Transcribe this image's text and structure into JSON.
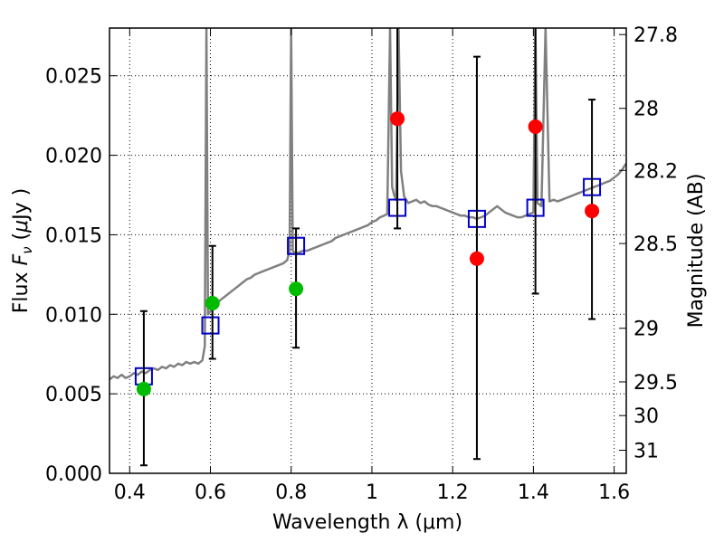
{
  "chart_data": {
    "type": "scatter",
    "xlabel": "Wavelength  λ (μm)",
    "ylabel": "Flux  F_ν  ( μJy )",
    "ylabel_right": "Magnitude (AB)",
    "xlim": [
      0.35,
      1.63
    ],
    "ylim": [
      0.0,
      0.028
    ],
    "grid": true,
    "x_ticks": [
      {
        "value": 0.4,
        "label": "0.4"
      },
      {
        "value": 0.6,
        "label": "0.6"
      },
      {
        "value": 0.8,
        "label": "0.8"
      },
      {
        "value": 1.0,
        "label": "1"
      },
      {
        "value": 1.2,
        "label": "1.2"
      },
      {
        "value": 1.4,
        "label": "1.4"
      },
      {
        "value": 1.6,
        "label": "1.6"
      }
    ],
    "y_ticks": [
      {
        "value": 0.0,
        "label": "0.000"
      },
      {
        "value": 0.005,
        "label": "0.005"
      },
      {
        "value": 0.01,
        "label": "0.010"
      },
      {
        "value": 0.015,
        "label": "0.015"
      },
      {
        "value": 0.02,
        "label": "0.020"
      },
      {
        "value": 0.025,
        "label": "0.025"
      }
    ],
    "right_ticks": [
      {
        "flux": 0.02759,
        "label": "27.8"
      },
      {
        "flux": 0.02295,
        "label": "28"
      },
      {
        "flux": 0.01905,
        "label": "28.2"
      },
      {
        "flux": 0.01445,
        "label": "28.5"
      },
      {
        "flux": 0.00912,
        "label": "29"
      },
      {
        "flux": 0.00575,
        "label": "29.5"
      },
      {
        "flux": 0.00363,
        "label": "30"
      },
      {
        "flux": 0.00145,
        "label": "31"
      }
    ],
    "series": [
      {
        "kind": "line",
        "color": "#808080",
        "points": [
          [
            0.35,
            0.0059
          ],
          [
            0.36,
            0.0061
          ],
          [
            0.37,
            0.006
          ],
          [
            0.38,
            0.0062
          ],
          [
            0.39,
            0.006
          ],
          [
            0.4,
            0.0061
          ],
          [
            0.41,
            0.0063
          ],
          [
            0.42,
            0.0062
          ],
          [
            0.43,
            0.0064
          ],
          [
            0.44,
            0.0063
          ],
          [
            0.45,
            0.0065
          ],
          [
            0.46,
            0.0066
          ],
          [
            0.47,
            0.0065
          ],
          [
            0.48,
            0.0067
          ],
          [
            0.49,
            0.0066
          ],
          [
            0.5,
            0.0068
          ],
          [
            0.51,
            0.0067
          ],
          [
            0.52,
            0.0069
          ],
          [
            0.53,
            0.0068
          ],
          [
            0.54,
            0.007
          ],
          [
            0.55,
            0.0069
          ],
          [
            0.56,
            0.007
          ],
          [
            0.57,
            0.0069
          ],
          [
            0.58,
            0.0071
          ],
          [
            0.586,
            0.008
          ],
          [
            0.59,
            0.028
          ],
          [
            0.594,
            0.01
          ],
          [
            0.6,
            0.0102
          ],
          [
            0.61,
            0.0105
          ],
          [
            0.62,
            0.0108
          ],
          [
            0.63,
            0.011
          ],
          [
            0.64,
            0.0112
          ],
          [
            0.65,
            0.0114
          ],
          [
            0.66,
            0.0116
          ],
          [
            0.67,
            0.0118
          ],
          [
            0.68,
            0.012
          ],
          [
            0.69,
            0.0122
          ],
          [
            0.7,
            0.0123
          ],
          [
            0.71,
            0.0125
          ],
          [
            0.72,
            0.0126
          ],
          [
            0.73,
            0.0127
          ],
          [
            0.74,
            0.0128
          ],
          [
            0.75,
            0.0129
          ],
          [
            0.76,
            0.013
          ],
          [
            0.77,
            0.0131
          ],
          [
            0.78,
            0.0132
          ],
          [
            0.79,
            0.0134
          ],
          [
            0.796,
            0.014
          ],
          [
            0.8,
            0.028
          ],
          [
            0.804,
            0.014
          ],
          [
            0.81,
            0.0138
          ],
          [
            0.82,
            0.0139
          ],
          [
            0.83,
            0.014
          ],
          [
            0.84,
            0.014
          ],
          [
            0.85,
            0.0141
          ],
          [
            0.86,
            0.0142
          ],
          [
            0.87,
            0.0143
          ],
          [
            0.88,
            0.0144
          ],
          [
            0.89,
            0.0145
          ],
          [
            0.9,
            0.0146
          ],
          [
            0.91,
            0.0148
          ],
          [
            0.92,
            0.0149
          ],
          [
            0.93,
            0.015
          ],
          [
            0.94,
            0.0151
          ],
          [
            0.95,
            0.0152
          ],
          [
            0.96,
            0.0153
          ],
          [
            0.97,
            0.0154
          ],
          [
            0.98,
            0.0155
          ],
          [
            0.99,
            0.0156
          ],
          [
            1.0,
            0.0158
          ],
          [
            1.01,
            0.0159
          ],
          [
            1.02,
            0.0161
          ],
          [
            1.03,
            0.0162
          ],
          [
            1.038,
            0.0163
          ],
          [
            1.045,
            0.028
          ],
          [
            1.05,
            0.018
          ],
          [
            1.055,
            0.0175
          ],
          [
            1.06,
            0.0172
          ],
          [
            1.066,
            0.028
          ],
          [
            1.072,
            0.019
          ],
          [
            1.08,
            0.0174
          ],
          [
            1.09,
            0.017
          ],
          [
            1.1,
            0.0171
          ],
          [
            1.11,
            0.0172
          ],
          [
            1.12,
            0.017
          ],
          [
            1.13,
            0.0171
          ],
          [
            1.14,
            0.0169
          ],
          [
            1.15,
            0.0168
          ],
          [
            1.16,
            0.0168
          ],
          [
            1.17,
            0.0167
          ],
          [
            1.18,
            0.0166
          ],
          [
            1.19,
            0.0165
          ],
          [
            1.2,
            0.0164
          ],
          [
            1.21,
            0.0163
          ],
          [
            1.22,
            0.0162
          ],
          [
            1.23,
            0.0162
          ],
          [
            1.24,
            0.0161
          ],
          [
            1.25,
            0.0161
          ],
          [
            1.26,
            0.016
          ],
          [
            1.27,
            0.0161
          ],
          [
            1.28,
            0.0162
          ],
          [
            1.29,
            0.0164
          ],
          [
            1.3,
            0.0166
          ],
          [
            1.31,
            0.0168
          ],
          [
            1.32,
            0.0166
          ],
          [
            1.33,
            0.0164
          ],
          [
            1.34,
            0.0163
          ],
          [
            1.35,
            0.0162
          ],
          [
            1.36,
            0.0161
          ],
          [
            1.37,
            0.0161
          ],
          [
            1.38,
            0.0162
          ],
          [
            1.39,
            0.0163
          ],
          [
            1.4,
            0.0164
          ],
          [
            1.405,
            0.028
          ],
          [
            1.41,
            0.017
          ],
          [
            1.42,
            0.0168
          ],
          [
            1.43,
            0.028
          ],
          [
            1.44,
            0.0171
          ],
          [
            1.45,
            0.0172
          ],
          [
            1.46,
            0.0171
          ],
          [
            1.47,
            0.0172
          ],
          [
            1.48,
            0.0173
          ],
          [
            1.49,
            0.0174
          ],
          [
            1.5,
            0.0175
          ],
          [
            1.51,
            0.0176
          ],
          [
            1.52,
            0.0177
          ],
          [
            1.53,
            0.0178
          ],
          [
            1.54,
            0.0179
          ],
          [
            1.55,
            0.018
          ],
          [
            1.56,
            0.0181
          ],
          [
            1.57,
            0.0182
          ],
          [
            1.58,
            0.0183
          ],
          [
            1.59,
            0.0184
          ],
          [
            1.6,
            0.0186
          ],
          [
            1.61,
            0.0188
          ],
          [
            1.62,
            0.0191
          ],
          [
            1.63,
            0.0195
          ]
        ]
      },
      {
        "kind": "squares",
        "color": "#0000cc",
        "points": [
          [
            0.435,
            0.0061
          ],
          [
            0.6,
            0.0093
          ],
          [
            0.812,
            0.0143
          ],
          [
            1.063,
            0.0167
          ],
          [
            1.26,
            0.016
          ],
          [
            1.405,
            0.0167
          ],
          [
            1.545,
            0.018
          ]
        ]
      },
      {
        "kind": "errorbars",
        "color": "#000000",
        "points": [
          {
            "x": 0.435,
            "lo": 0.0005,
            "hi": 0.0102
          },
          {
            "x": 0.605,
            "lo": 0.0072,
            "hi": 0.0143
          },
          {
            "x": 0.812,
            "lo": 0.0079,
            "hi": 0.0154
          },
          {
            "x": 1.063,
            "lo": 0.0154,
            "hi": 0.028
          },
          {
            "x": 1.26,
            "lo": 0.0009,
            "hi": 0.0262
          },
          {
            "x": 1.405,
            "lo": 0.0113,
            "hi": 0.028
          },
          {
            "x": 1.545,
            "lo": 0.0097,
            "hi": 0.0235
          }
        ]
      },
      {
        "kind": "dots",
        "color": "#00bb00",
        "points": [
          [
            0.435,
            0.0053
          ],
          [
            0.605,
            0.0107
          ],
          [
            0.812,
            0.0116
          ]
        ]
      },
      {
        "kind": "dots",
        "color": "#ff0000",
        "points": [
          [
            1.063,
            0.0223
          ],
          [
            1.26,
            0.0135
          ],
          [
            1.405,
            0.0218
          ],
          [
            1.545,
            0.0165
          ]
        ]
      }
    ]
  }
}
